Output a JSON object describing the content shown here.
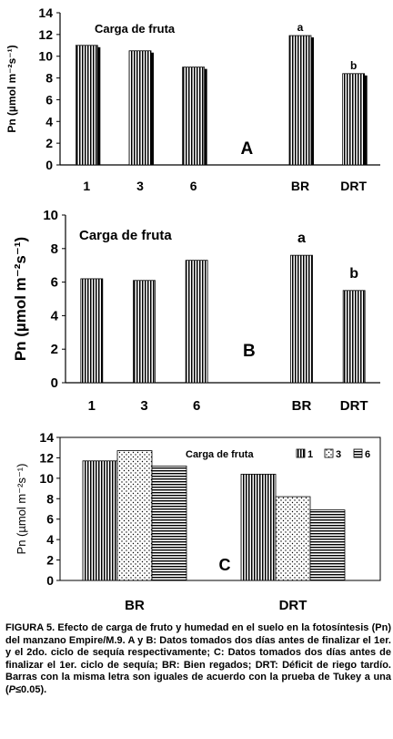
{
  "colors": {
    "bar_fill": "#ffffff",
    "bar_stripe": "#000000",
    "axis": "#000000"
  },
  "chart_data": [
    {
      "type": "bar",
      "panel_label": "A",
      "annotation": "Carga de fruta",
      "ylabel": "Pn (µmol m⁻²s⁻¹)",
      "categories": [
        "1",
        "3",
        "6",
        "",
        "BR",
        "DRT"
      ],
      "values": [
        11.0,
        10.5,
        9.0,
        null,
        11.9,
        8.4
      ],
      "bar_letters": [
        "",
        "",
        "",
        "",
        "a",
        "b"
      ],
      "ylim": [
        0,
        14
      ],
      "yticks": [
        0,
        2,
        4,
        6,
        8,
        10,
        12,
        14
      ],
      "grid": false,
      "pattern": "vertical-stripes"
    },
    {
      "type": "bar",
      "panel_label": "B",
      "annotation": "Carga de fruta",
      "ylabel": "Pn (µmol m⁻²s⁻¹)",
      "categories": [
        "1",
        "3",
        "6",
        "",
        "BR",
        "DRT"
      ],
      "values": [
        6.2,
        6.1,
        7.3,
        null,
        7.6,
        5.5
      ],
      "bar_letters": [
        "",
        "",
        "",
        "",
        "a",
        "b"
      ],
      "ylim": [
        0,
        10
      ],
      "yticks": [
        0,
        2,
        4,
        6,
        8,
        10
      ],
      "grid": false,
      "pattern": "vertical-stripes"
    },
    {
      "type": "bar",
      "panel_label": "C",
      "ylabel": "Pn (µmol m⁻²s⁻¹)",
      "categories": [
        "BR",
        "DRT"
      ],
      "legend_title": "Carga de fruta",
      "legend_position": "top-right",
      "series": [
        {
          "name": "1",
          "values": [
            11.7,
            10.4
          ],
          "pattern": "vertical-stripes"
        },
        {
          "name": "3",
          "values": [
            12.7,
            8.2
          ],
          "pattern": "dots"
        },
        {
          "name": "6",
          "values": [
            11.2,
            6.9
          ],
          "pattern": "horizontal-stripes"
        }
      ],
      "ylim": [
        0,
        14
      ],
      "yticks": [
        0,
        2,
        4,
        6,
        8,
        10,
        12,
        14
      ],
      "grid": false
    }
  ],
  "caption": {
    "lead": "FIGURA 5.",
    "text_before_p": " Efecto de carga de fruto y humedad en el suelo en la fotosíntesis (Pn) del manzano Empire/M.9. A y B: Datos tomados dos días antes de finalizar el 1er. y el 2do. ciclo de sequía respectivamente; C: Datos tomados dos días antes de finalizar el 1er. ciclo de sequía; BR: Bien regados; DRT: Déficit de riego tardío. Barras con la misma letra son iguales de acuerdo con la prueba de Tukey a una (",
    "p_symbol": "P",
    "text_after_p": "≤0.05)."
  }
}
